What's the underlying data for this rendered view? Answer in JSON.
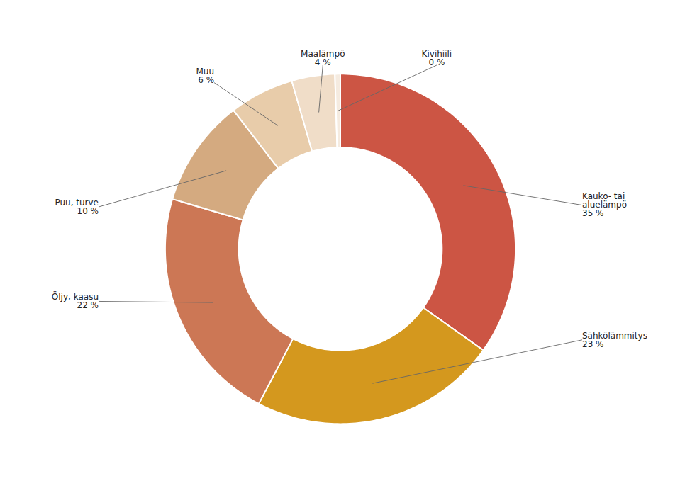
{
  "chart_data": {
    "type": "pie",
    "categories": [
      "Kauko- tai\naluelämpö",
      "Sähkölämmitys",
      "Öljy, kaasu",
      "Puu, turve",
      "Muu",
      "Maalämpö",
      "Kivihiili"
    ],
    "values": [
      35,
      23,
      22,
      10,
      6,
      4,
      0.5
    ],
    "value_labels": [
      "35 %",
      "23 %",
      "22 %",
      "10 %",
      "6 %",
      "4 %",
      "0 %"
    ],
    "colors": [
      "#cc5544",
      "#d4981e",
      "#cc7755",
      "#d4aa80",
      "#e8ccaa",
      "#f0ddc8",
      "#f5ebe0"
    ],
    "data_labels": true
  }
}
